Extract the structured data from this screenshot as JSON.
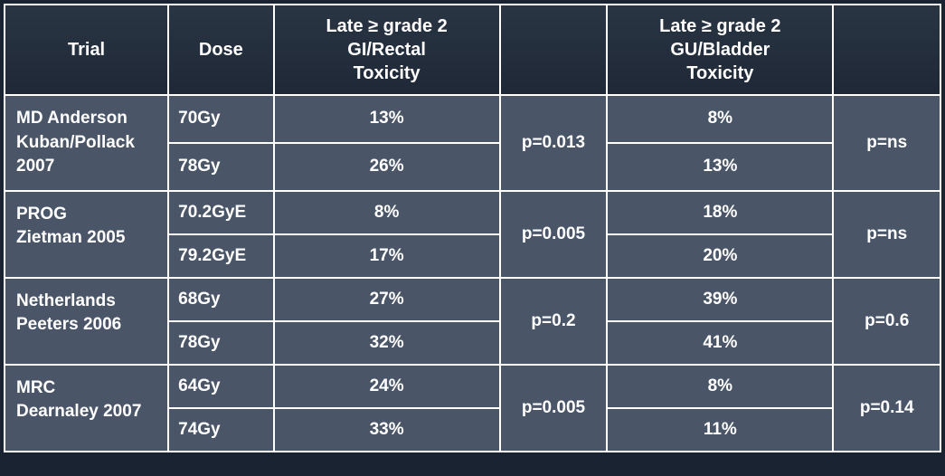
{
  "headers": {
    "trial": "Trial",
    "dose": "Dose",
    "gi": "Late ≥ grade 2 GI/Rectal Toxicity",
    "p1": "",
    "gu": "Late ≥ grade 2 GU/Bladder Toxicity",
    "p2": ""
  },
  "columns": {
    "trial_width": 168,
    "dose_width": 108,
    "gi_width": 232,
    "p1_width": 110,
    "gu_width": 232,
    "p2_width": 110
  },
  "groups": [
    {
      "trial_lines": [
        "MD Anderson",
        "Kuban/Pollack 2007"
      ],
      "p_gi": "p=0.013",
      "p_gu": "p=ns",
      "rows": [
        {
          "dose": "70Gy",
          "gi": "13%",
          "gu": "8%"
        },
        {
          "dose": "78Gy",
          "gi": "26%",
          "gu": "13%"
        }
      ]
    },
    {
      "trial_lines": [
        "PROG",
        "Zietman 2005"
      ],
      "p_gi": "p=0.005",
      "p_gu": "p=ns",
      "rows": [
        {
          "dose": "70.2GyE",
          "gi": "8%",
          "gu": "18%"
        },
        {
          "dose": "79.2GyE",
          "gi": "17%",
          "gu": "20%"
        }
      ]
    },
    {
      "trial_lines": [
        "Netherlands",
        "Peeters 2006"
      ],
      "p_gi": "p=0.2",
      "p_gu": "p=0.6",
      "rows": [
        {
          "dose": "68Gy",
          "gi": "27%",
          "gu": "39%"
        },
        {
          "dose": "78Gy",
          "gi": "32%",
          "gu": "41%"
        }
      ]
    },
    {
      "trial_lines": [
        "MRC",
        "Dearnaley 2007"
      ],
      "p_gi": "p=0.005",
      "p_gu": "p=0.14",
      "rows": [
        {
          "dose": "64Gy",
          "gi": "24%",
          "gu": "8%"
        },
        {
          "dose": "74Gy",
          "gi": "33%",
          "gu": "11%"
        }
      ]
    }
  ],
  "styling": {
    "header_bg_top": "#2a3544",
    "header_bg_bottom": "#1e2836",
    "cell_bg": "#4a5668",
    "border_color": "#ffffff",
    "text_color": "#ffffff",
    "font_family": "Arial",
    "header_fontsize": 20,
    "cell_fontsize": 19,
    "font_weight": "bold"
  }
}
